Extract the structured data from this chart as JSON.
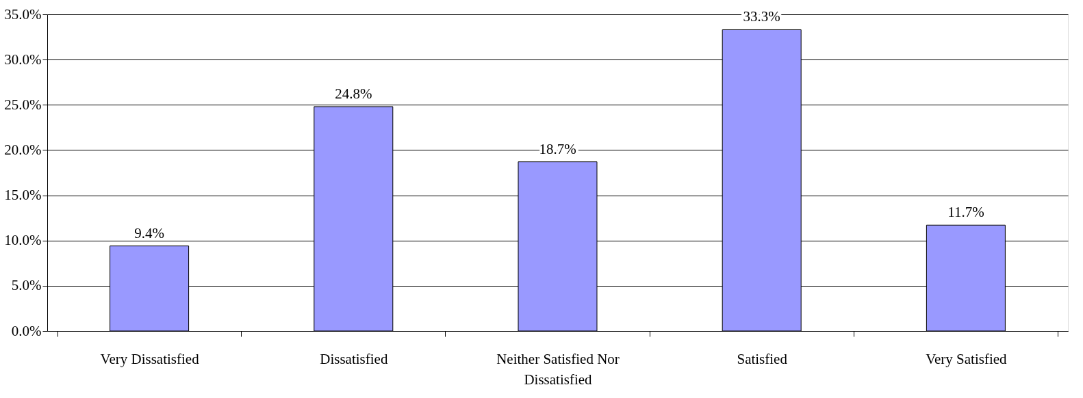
{
  "chart_data": {
    "type": "bar",
    "categories": [
      "Very Dissatisfied",
      "Dissatisfied",
      "Neither Satisfied Nor Dissatisfied",
      "Satisfied",
      "Very Satisfied"
    ],
    "values": [
      9.4,
      24.8,
      18.7,
      33.3,
      11.7
    ],
    "value_labels": [
      "9.4%",
      "24.8%",
      "18.7%",
      "33.3%",
      "11.7%"
    ],
    "color": "#9999ff",
    "ylim": [
      0,
      35
    ],
    "yticks": [
      {
        "value": 0,
        "label": "0.0%"
      },
      {
        "value": 5,
        "label": "5.0%"
      },
      {
        "value": 10,
        "label": "10.0%"
      },
      {
        "value": 15,
        "label": "15.0%"
      },
      {
        "value": 20,
        "label": "20.0%"
      },
      {
        "value": 25,
        "label": "25.0%"
      },
      {
        "value": 30,
        "label": "30.0%"
      },
      {
        "value": 35,
        "label": "35.0%"
      }
    ],
    "grid": "y"
  }
}
